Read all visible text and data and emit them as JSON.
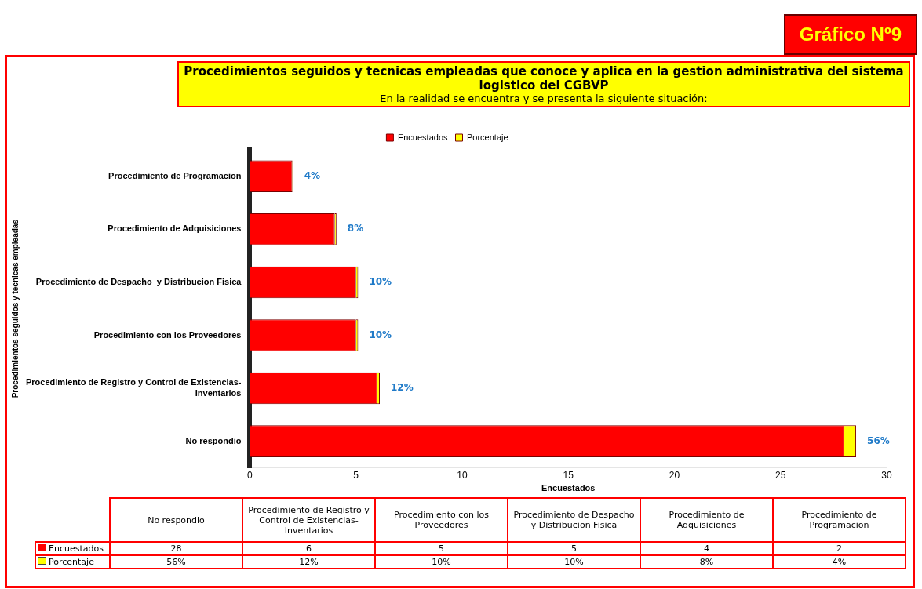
{
  "chart_data": [
    {
      "type": "bar",
      "orientation": "horizontal",
      "stacked": true,
      "title": "Procedimientos seguidos y tecnicas empleadas que conoce y aplica en la gestion administrativa del sistema logistico del CGBVP",
      "subtitle": "En la realidad se encuentra y se presenta la siguiente situación:",
      "annotations": [
        "Gráfico Nº9"
      ],
      "xlabel": "Encuestados",
      "ylabel": "Procedimientos seguidos y tecnicas empleadas",
      "categories": [
        "Procedimiento de Programacion",
        "Procedimiento de Adquisiciones",
        "Procedimiento de Despacho  y Distribucion Fisica",
        "Procedimiento con los Proveedores",
        "Procedimiento de Registro y Control de Existencias-Inventarios",
        "No respondio"
      ],
      "series": [
        {
          "name": "Encuestados",
          "color": "#ff0000",
          "values": [
            2,
            4,
            5,
            5,
            6,
            28
          ]
        },
        {
          "name": "Porcentaje",
          "color": "#ffff00",
          "values": [
            0.04,
            0.08,
            0.1,
            0.1,
            0.12,
            0.56
          ],
          "value_labels": [
            "4%",
            "8%",
            "10%",
            "10%",
            "12%",
            "56%"
          ]
        }
      ],
      "xlim": [
        0,
        30
      ],
      "xticks": [
        0,
        5,
        10,
        15,
        20,
        25,
        30
      ],
      "legend": "top",
      "grid": false
    },
    {
      "type": "other",
      "categories": [
        "No respondio",
        "Procedimiento de Registro y Control de Existencias-Inventarios",
        "Procedimiento con los Proveedores",
        "Procedimiento de Despacho y Distribucion Fisica",
        "Procedimiento de Adquisiciones",
        "Procedimiento de Programacion"
      ],
      "series": [
        {
          "name": "Encuestados",
          "color": "#ff0000",
          "values": [
            28,
            6,
            5,
            5,
            4,
            2
          ],
          "value_labels": [
            "28",
            "6",
            "5",
            "5",
            "4",
            "2"
          ]
        },
        {
          "name": "Porcentaje",
          "color": "#ffff00",
          "values": [
            56,
            12,
            10,
            10,
            8,
            4
          ],
          "value_labels": [
            "56%",
            "12%",
            "10%",
            "10%",
            "8%",
            "4%"
          ]
        }
      ]
    }
  ]
}
